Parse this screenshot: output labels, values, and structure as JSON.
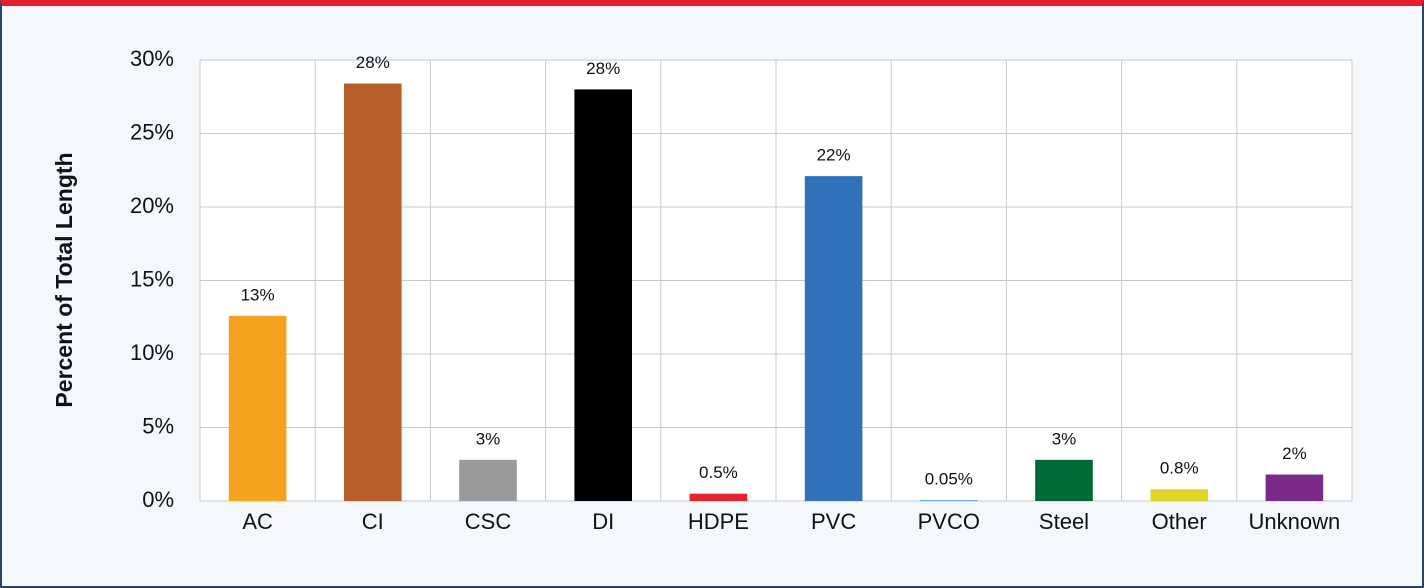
{
  "chart_data": {
    "type": "bar",
    "ylabel": "Percent of Total Length",
    "categories": [
      "AC",
      "CI",
      "CSC",
      "DI",
      "HDPE",
      "PVC",
      "PVCO",
      "Steel",
      "Other",
      "Unknown"
    ],
    "values": [
      12.6,
      28.4,
      2.8,
      28,
      0.5,
      22.1,
      0.05,
      2.8,
      0.8,
      1.8
    ],
    "value_labels": [
      "13%",
      "28%",
      "3%",
      "28%",
      "0.5%",
      "22%",
      "0.05%",
      "3%",
      "0.8%",
      "2%"
    ],
    "colors": [
      "#f5a31f",
      "#b85f29",
      "#98999b",
      "#000000",
      "#e3242f",
      "#2f72ba",
      "#2b8ad8",
      "#006a35",
      "#e2d52a",
      "#7a2a88"
    ],
    "ylim": [
      0,
      30
    ],
    "yticks": [
      {
        "value": 0,
        "label": "0%"
      },
      {
        "value": 5,
        "label": "5%"
      },
      {
        "value": 10,
        "label": "10%"
      },
      {
        "value": 15,
        "label": "15%"
      },
      {
        "value": 20,
        "label": "20%"
      },
      {
        "value": 25,
        "label": "25%"
      },
      {
        "value": 30,
        "label": "30%"
      }
    ],
    "grid": true
  }
}
